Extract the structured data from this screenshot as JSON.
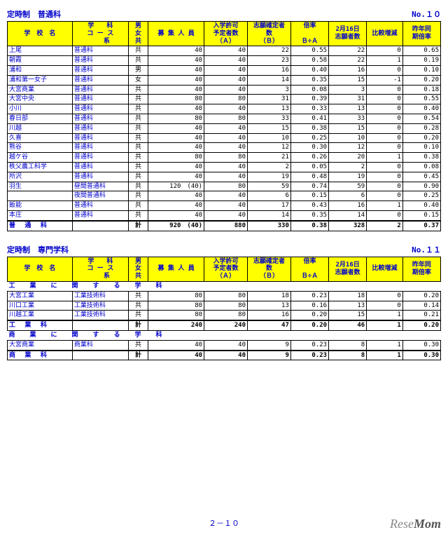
{
  "page_number": "２－１０",
  "brand": "ReseMom",
  "tables": [
    {
      "title_left": "定時制　普通科",
      "title_right": "No.１０",
      "headers": [
        "学　校　名",
        "学　　科\nコ ー ス\n　　系",
        "男\n女\n共",
        "募 集 人 員",
        "入学許可\n予定者数\n（Ａ）",
        "志願確定者\n数\n（Ｂ）",
        "倍率\n\nＢ÷Ａ",
        "2月16日\n志願者数",
        "比較増減",
        "昨年同\n期倍率"
      ],
      "rows": [
        [
          "上尾",
          "普通科",
          "共",
          "40",
          "40",
          "22",
          "0.55",
          "22",
          "0",
          "0.65"
        ],
        [
          "朝霞",
          "普通科",
          "共",
          "40",
          "40",
          "23",
          "0.58",
          "22",
          "1",
          "0.19"
        ],
        [
          "浦和",
          "普通科",
          "男",
          "40",
          "40",
          "16",
          "0.40",
          "16",
          "0",
          "0.10"
        ],
        [
          "浦和第一女子",
          "普通科",
          "女",
          "40",
          "40",
          "14",
          "0.35",
          "15",
          "-1",
          "0.20"
        ],
        [
          "大宮商業",
          "普通科",
          "共",
          "40",
          "40",
          "3",
          "0.08",
          "3",
          "0",
          "0.18"
        ],
        [
          "大宮中央",
          "普通科",
          "共",
          "80",
          "80",
          "31",
          "0.39",
          "31",
          "0",
          "0.55"
        ],
        [
          "小川",
          "普通科",
          "共",
          "40",
          "40",
          "13",
          "0.33",
          "13",
          "0",
          "0.40"
        ],
        [
          "春日部",
          "普通科",
          "共",
          "80",
          "80",
          "33",
          "0.41",
          "33",
          "0",
          "0.54"
        ],
        [
          "川越",
          "普通科",
          "共",
          "40",
          "40",
          "15",
          "0.38",
          "15",
          "0",
          "0.28"
        ],
        [
          "久喜",
          "普通科",
          "共",
          "40",
          "40",
          "10",
          "0.25",
          "10",
          "0",
          "0.20"
        ],
        [
          "熊谷",
          "普通科",
          "共",
          "40",
          "40",
          "12",
          "0.30",
          "12",
          "0",
          "0.10"
        ],
        [
          "越ケ谷",
          "普通科",
          "共",
          "80",
          "80",
          "21",
          "0.26",
          "20",
          "1",
          "0.38"
        ],
        [
          "秩父農工科学",
          "普通科",
          "共",
          "40",
          "40",
          "2",
          "0.05",
          "2",
          "0",
          "0.08"
        ],
        [
          "所沢",
          "普通科",
          "共",
          "40",
          "40",
          "19",
          "0.48",
          "19",
          "0",
          "0.45"
        ],
        [
          "羽生",
          "昼間普通科",
          "共",
          "120　(40)",
          "80",
          "59",
          "0.74",
          "59",
          "0",
          "0.90"
        ],
        [
          "",
          "夜間普通科",
          "共",
          "40",
          "40",
          "6",
          "0.15",
          "6",
          "0",
          "0.25"
        ],
        [
          "飯能",
          "普通科",
          "共",
          "40",
          "40",
          "17",
          "0.43",
          "16",
          "1",
          "0.40"
        ],
        [
          "本庄",
          "普通科",
          "共",
          "40",
          "40",
          "14",
          "0.35",
          "14",
          "0",
          "0.15"
        ]
      ],
      "total": [
        "普 通 科",
        "",
        "計",
        "920　(40)",
        "880",
        "330",
        "0.38",
        "328",
        "2",
        "0.37"
      ]
    },
    {
      "title_left": "定時制　専門学科",
      "title_right": "No.１１",
      "headers": [
        "学　校　名",
        "学　　科\nコ ー ス\n　　系",
        "男\n女\n共",
        "募 集 人 員",
        "入学許可\n予定者数\n（Ａ）",
        "志願確定者\n数\n（Ｂ）",
        "倍率\n\nＢ÷Ａ",
        "2月16日\n志願者数",
        "比較増減",
        "昨年同\n期倍率"
      ],
      "groups": [
        {
          "banner": "工　業　に　関　す　る　学　科",
          "rows": [
            [
              "大宮工業",
              "工業技術科",
              "共",
              "80",
              "80",
              "18",
              "0.23",
              "18",
              "0",
              "0.20"
            ],
            [
              "川口工業",
              "工業技術科",
              "共",
              "80",
              "80",
              "13",
              "0.16",
              "13",
              "0",
              "0.14"
            ],
            [
              "川越工業",
              "工業技術科",
              "共",
              "80",
              "80",
              "16",
              "0.20",
              "15",
              "1",
              "0.21"
            ]
          ],
          "total": [
            "工 業 科",
            "",
            "計",
            "240",
            "240",
            "47",
            "0.20",
            "46",
            "1",
            "0.20"
          ]
        },
        {
          "banner": "商　業　に　関　す　る　学　科",
          "rows": [
            [
              "大宮商業",
              "商業科",
              "共",
              "40",
              "40",
              "9",
              "0.23",
              "8",
              "1",
              "0.30"
            ]
          ],
          "total": [
            "商 業 科",
            "",
            "計",
            "40",
            "40",
            "9",
            "0.23",
            "8",
            "1",
            "0.30"
          ]
        }
      ]
    }
  ]
}
